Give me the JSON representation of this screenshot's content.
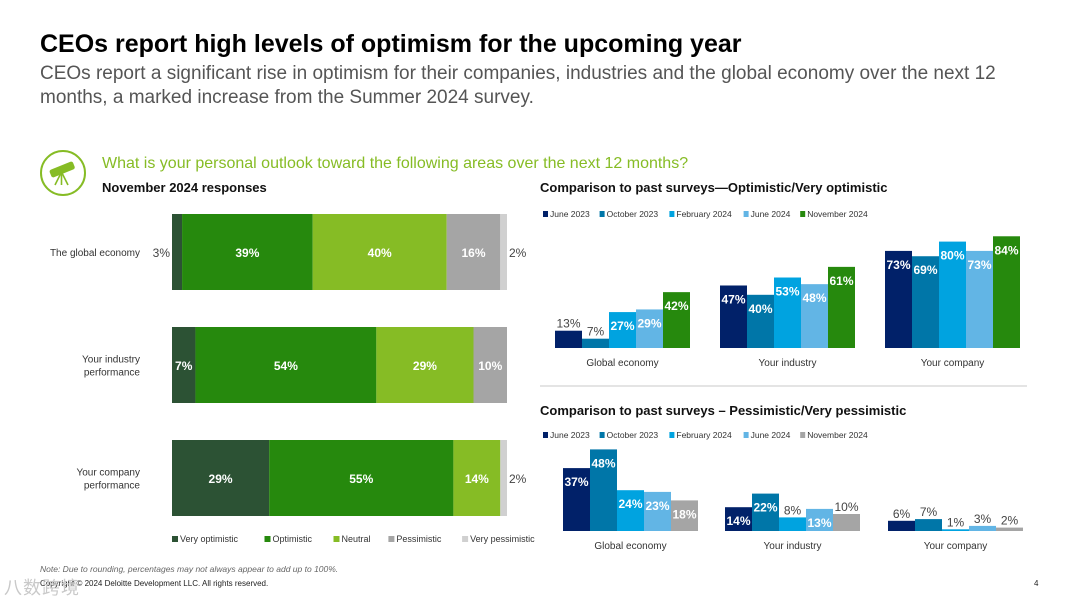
{
  "title": "CEOs report high levels of optimism for the upcoming year",
  "subtitle": "CEOs report a significant rise in optimism for their companies, industries and the global economy over the next 12 months, a marked increase from the Summer 2024 survey.",
  "question": "What is your personal outlook toward the following areas over the next 12 months?",
  "icon_name": "telescope-icon",
  "note": "Note: Due to rounding, percentages may not always appear to add up to 100%.",
  "copyright": "Copyright © 2024 Deloitte Development LLC. All rights reserved.",
  "page_number": "4",
  "watermark": "八数跨境",
  "colors": {
    "very_optimistic": "#2c5234",
    "optimistic": "#26890d",
    "neutral": "#86bc25",
    "pessimistic": "#a5a5a5",
    "very_pessimistic": "#d0d0d0",
    "june_2023": "#012169",
    "october_2023": "#0076a8",
    "february_2024": "#00a3e0",
    "june_2024": "#62b5e5",
    "november_2024": "#26890d",
    "november_2024_gray": "#a5a5a5"
  },
  "chart_data": [
    {
      "type": "bar",
      "orientation": "horizontal-stacked",
      "title": "November 2024 responses",
      "categories": [
        "The global economy",
        "Your industry performance",
        "Your company performance"
      ],
      "series": [
        {
          "name": "Very optimistic",
          "values": [
            3,
            7,
            29
          ],
          "labels": [
            "3%",
            "7%",
            "29%"
          ]
        },
        {
          "name": "Optimistic",
          "values": [
            39,
            54,
            55
          ],
          "labels": [
            "39%",
            "54%",
            "55%"
          ]
        },
        {
          "name": "Neutral",
          "values": [
            40,
            29,
            14
          ],
          "labels": [
            "40%",
            "29%",
            "14%"
          ]
        },
        {
          "name": "Pessimistic",
          "values": [
            16,
            10,
            0
          ],
          "labels": [
            "16%",
            "10%",
            ""
          ]
        },
        {
          "name": "Very pessimistic",
          "values": [
            2,
            0,
            2
          ],
          "labels": [
            "2%",
            "",
            "2%"
          ]
        }
      ],
      "legend_position": "bottom"
    },
    {
      "type": "bar",
      "title": "Comparison to past surveys—Optimistic/Very optimistic",
      "categories": [
        "Global economy",
        "Your industry",
        "Your company"
      ],
      "series": [
        {
          "name": "June 2023",
          "values": [
            13,
            47,
            73
          ],
          "labels": [
            "13%",
            "47%",
            "73%"
          ]
        },
        {
          "name": "October 2023",
          "values": [
            7,
            40,
            69
          ],
          "labels": [
            "7%",
            "40%",
            "69%"
          ]
        },
        {
          "name": "February 2024",
          "values": [
            27,
            53,
            80
          ],
          "labels": [
            "27%",
            "53%",
            "80%"
          ]
        },
        {
          "name": "June 2024",
          "values": [
            29,
            48,
            73
          ],
          "labels": [
            "29%",
            "48%",
            "73%"
          ]
        },
        {
          "name": "November 2024",
          "values": [
            42,
            61,
            84
          ],
          "labels": [
            "42%",
            "61%",
            "84%"
          ]
        }
      ],
      "legend_position": "top"
    },
    {
      "type": "bar",
      "title": "Comparison to past surveys – Pessimistic/Very pessimistic",
      "categories": [
        "Global economy",
        "Your industry",
        "Your company"
      ],
      "series": [
        {
          "name": "June 2023",
          "values": [
            37,
            14,
            6
          ],
          "labels": [
            "37%",
            "14%",
            "6%"
          ]
        },
        {
          "name": "October 2023",
          "values": [
            48,
            22,
            7
          ],
          "labels": [
            "48%",
            "22%",
            "7%"
          ]
        },
        {
          "name": "February 2024",
          "values": [
            24,
            8,
            1
          ],
          "labels": [
            "24%",
            "8%",
            "1%"
          ]
        },
        {
          "name": "June 2024",
          "values": [
            23,
            13,
            3
          ],
          "labels": [
            "23%",
            "13%",
            "3%"
          ]
        },
        {
          "name": "November 2024",
          "values": [
            18,
            10,
            2
          ],
          "labels": [
            "18%",
            "10%",
            "2%"
          ]
        }
      ],
      "legend_position": "top"
    }
  ]
}
